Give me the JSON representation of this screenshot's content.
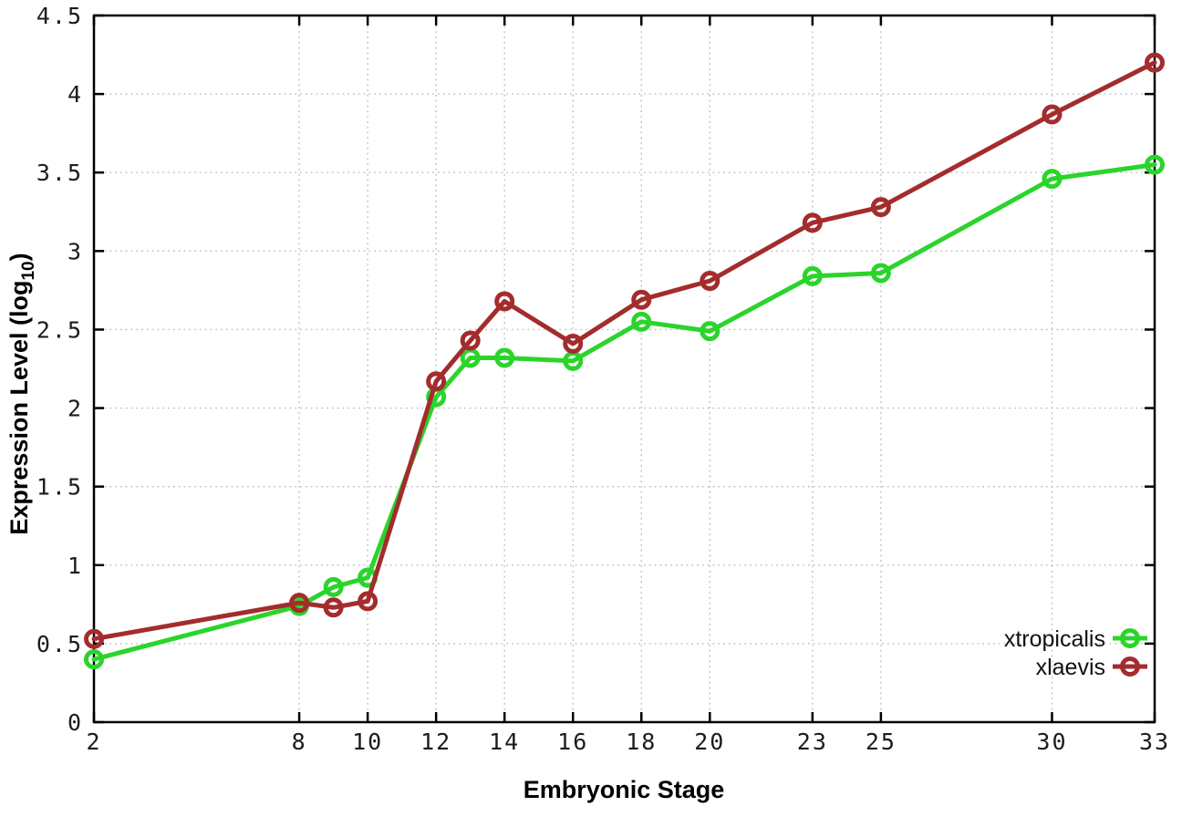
{
  "chart_data": {
    "type": "line",
    "title": "",
    "xlabel": "Embryonic Stage",
    "ylabel": {
      "pre": "Expression Level (log",
      "sub": "10",
      "post": ")"
    },
    "xlim": [
      2,
      33
    ],
    "ylim": [
      0,
      4.5
    ],
    "grid": true,
    "legend_position": "inside-bottom-right",
    "x": [
      2,
      8,
      9,
      10,
      12,
      13,
      14,
      16,
      18,
      20,
      23,
      25,
      30,
      33
    ],
    "xticks": [
      2,
      8,
      10,
      12,
      14,
      16,
      18,
      20,
      23,
      25,
      30,
      33
    ],
    "xtick_labels": [
      "2",
      "8",
      "10",
      "12",
      "14",
      "16",
      "18",
      "20",
      "23",
      "25",
      "30",
      "33"
    ],
    "yticks": [
      0,
      0.5,
      1,
      1.5,
      2,
      2.5,
      3,
      3.5,
      4,
      4.5
    ],
    "ytick_labels": [
      "0",
      "0.5",
      "1",
      "1.5",
      "2",
      "2.5",
      "3",
      "3.5",
      "4",
      "4.5"
    ],
    "series": [
      {
        "name": "xtropicalis",
        "color": "#2bd42b",
        "marker": "open-circle",
        "values": [
          0.4,
          0.74,
          0.86,
          0.92,
          2.07,
          2.32,
          2.32,
          2.3,
          2.55,
          2.49,
          2.84,
          2.86,
          3.46,
          3.55
        ]
      },
      {
        "name": "xlaevis",
        "color": "#a32c2c",
        "marker": "open-circle",
        "values": [
          0.53,
          0.76,
          0.73,
          0.77,
          2.17,
          2.43,
          2.68,
          2.41,
          2.69,
          2.81,
          3.18,
          3.28,
          3.87,
          4.2
        ]
      }
    ],
    "style": {
      "grid_color": "#b8b8b8",
      "border_color": "#000000",
      "background": "#ffffff"
    }
  }
}
